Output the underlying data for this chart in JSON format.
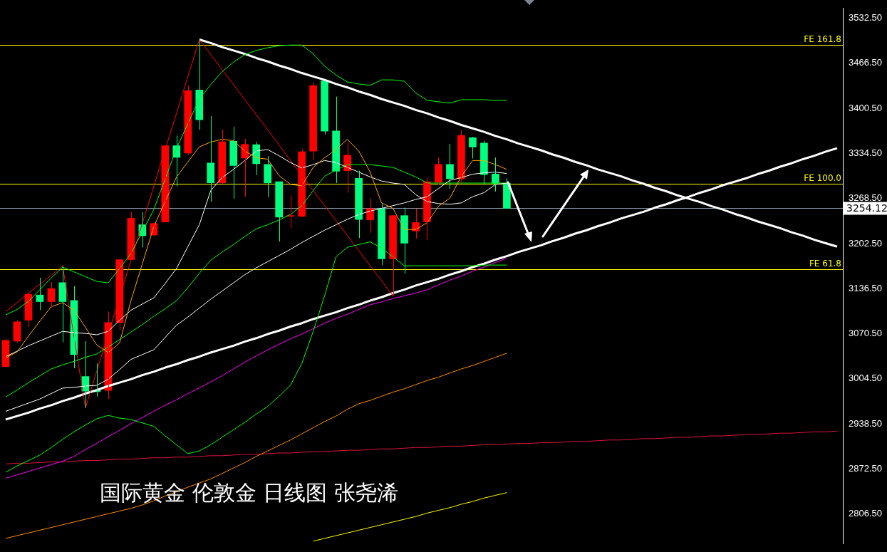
{
  "chart_data": {
    "type": "candlestick",
    "title": "国际黄金 伦敦金 日线图 张尧浠",
    "categories": [
      null,
      null,
      null,
      null,
      null,
      null,
      null,
      null,
      null,
      null,
      null,
      null,
      null,
      null,
      null,
      null,
      null,
      null,
      null,
      null,
      null,
      null,
      null,
      null,
      null,
      null,
      null,
      null,
      null,
      null,
      null,
      null,
      null,
      null,
      null,
      null,
      null,
      null,
      null,
      null,
      null,
      null,
      null,
      null,
      null,
      null,
      null,
      null,
      null,
      null,
      null,
      null,
      null,
      null,
      null,
      null,
      null,
      null,
      null,
      null,
      null,
      null,
      null,
      null,
      null,
      null,
      null,
      null,
      null,
      null,
      null,
      null,
      null,
      null
    ],
    "ohlc": [
      [
        3022.5,
        3063.5,
        3021.8,
        3060.8
      ],
      [
        3059.7,
        3090.4,
        3057.9,
        3087.9
      ],
      [
        3090.4,
        3130.8,
        3080.3,
        3128.3
      ],
      [
        3127.2,
        3152.5,
        3104.9,
        3117.5
      ],
      [
        3117.5,
        3146.3,
        3108.4,
        3136.6
      ],
      [
        3145.3,
        3169.8,
        3057.9,
        3117.5
      ],
      [
        3119.2,
        3140.3,
        3020.0,
        3039.9
      ],
      [
        3008.0,
        3059.7,
        2962.3,
        2986.4
      ],
      [
        2987.5,
        3027.1,
        2978.6,
        2985.7
      ],
      [
        2987.5,
        3103.0,
        2974.9,
        3086.8
      ],
      [
        3086.8,
        3179.0,
        3076.0,
        3178.9
      ],
      [
        3178.9,
        3248.5,
        3178.9,
        3239.5
      ],
      [
        3230.1,
        3248.5,
        3196.8,
        3213.8
      ],
      [
        3214.9,
        3232.9,
        3213.1,
        3231.9
      ],
      [
        3234.0,
        3346.0,
        3233.5,
        3345.6
      ],
      [
        3345.6,
        3360.4,
        3286.4,
        3328.6
      ],
      [
        3334.8,
        3433.3,
        3332.3,
        3426.1
      ],
      [
        3427.2,
        3501.2,
        3369.1,
        3383.5
      ],
      [
        3320.3,
        3388.9,
        3263.6,
        3291.4
      ],
      [
        3291.4,
        3369.4,
        3290.0,
        3351.4
      ],
      [
        3352.1,
        3373.7,
        3268.0,
        3316.7
      ],
      [
        3327.5,
        3355.7,
        3270.8,
        3347.7
      ],
      [
        3347.2,
        3351.4,
        3302.7,
        3319.2
      ],
      [
        3318.2,
        3330.4,
        3270.4,
        3291.2
      ],
      [
        3292.9,
        3292.9,
        3205.3,
        3241.1
      ],
      [
        3242.4,
        3272.8,
        3225.5,
        3243.1
      ],
      [
        3242.4,
        3340.5,
        3241.1,
        3336.7
      ],
      [
        3337.7,
        3438.2,
        3325.3,
        3433.7
      ],
      [
        3440.5,
        3440.5,
        3362.0,
        3367.0
      ],
      [
        3367.4,
        3417.6,
        3291.2,
        3308.4
      ],
      [
        3309.1,
        3350.6,
        3277.1,
        3331.9
      ],
      [
        3298.0,
        3309.1,
        3210.4,
        3237.7
      ],
      [
        3237.1,
        3268.7,
        3218.2,
        3253.6
      ],
      [
        3253.6,
        3260.9,
        3170.9,
        3180.1
      ],
      [
        3180.1,
        3243.4,
        3125.5,
        3243.4
      ],
      [
        3243.4,
        3255.3,
        3158.2,
        3203.0
      ],
      [
        3220.9,
        3253.6,
        3209.8,
        3233.2
      ],
      [
        3234.3,
        3299.7,
        3207.4,
        3292.9
      ],
      [
        3292.2,
        3328.3,
        3288.9,
        3318.2
      ],
      [
        3318.2,
        3348.5,
        3282.2,
        3297.3
      ],
      [
        3297.3,
        3368.8,
        3290.6,
        3360.7
      ],
      [
        3357.3,
        3358.6,
        3327.0,
        3343.8
      ],
      [
        3349.6,
        3352.9,
        3288.2,
        3303.4
      ],
      [
        3304.1,
        3328.3,
        3278.8,
        3290.6
      ],
      [
        3290.6,
        3298.0,
        3254.12,
        3254.12
      ],
      null,
      null,
      null,
      null,
      null,
      null,
      null,
      null,
      null,
      null,
      null,
      null,
      null,
      null,
      null,
      null,
      null,
      null,
      null,
      null,
      null,
      null,
      null,
      null,
      null,
      null,
      null,
      null,
      null
    ],
    "colors": [
      "#ff0000",
      "#ff0000",
      "#ff0000",
      "#00ff7f",
      "#ff0000",
      "#00ff7f",
      "#00ff7f",
      "#00ff7f",
      "#00ff7f",
      "#ff0000",
      "#ff0000",
      "#ff0000",
      "#00ff7f",
      "#ff0000",
      "#ff0000",
      "#00ff7f",
      "#ff0000",
      "#00ff7f",
      "#00ff7f",
      "#ff0000",
      "#00ff7f",
      "#ff0000",
      "#00ff7f",
      "#00ff7f",
      "#00ff7f",
      "#ff0000",
      "#ff0000",
      "#ff0000",
      "#00ff7f",
      "#00ff7f",
      "#ff0000",
      "#00ff7f",
      "#ff0000",
      "#00ff7f",
      "#ff0000",
      "#00ff7f",
      "#ff0000",
      "#ff0000",
      "#ff0000",
      "#00ff7f",
      "#ff0000",
      "#00ff7f",
      "#00ff7f",
      "#00ff7f",
      "#00ff7f",
      null,
      null,
      null,
      null,
      null,
      null,
      null,
      null,
      null,
      null,
      null,
      null,
      null,
      null,
      null,
      null,
      null,
      null,
      null,
      null,
      null,
      null,
      null,
      null,
      null,
      null,
      null,
      null,
      null
    ],
    "series": [
      {
        "type": "line",
        "color": "#ffa500",
        "values": [
          3035,
          3044,
          3067,
          3089,
          3110,
          3116,
          3105,
          3080,
          3054,
          3043,
          3057,
          3119,
          3173,
          3227,
          3264,
          3300,
          3322,
          3344,
          3351,
          3355,
          3353,
          3338,
          3328,
          3326,
          3302,
          3289,
          3287,
          3314,
          3328,
          3340,
          3355,
          3338,
          3307,
          3262,
          3254,
          3223,
          3223,
          3233,
          3257,
          3269,
          3301,
          3324,
          3324,
          3318,
          3311,
          null,
          null,
          null,
          null,
          null,
          null,
          null,
          null,
          null,
          null,
          null,
          null,
          null,
          null,
          null,
          null,
          null,
          null,
          null,
          null,
          null,
          null,
          null,
          null,
          null,
          null,
          null,
          null,
          null
        ]
      },
      {
        "type": "line",
        "color": "#ffffff",
        "values": [
          3037,
          3045,
          3053,
          3060,
          3067,
          3074,
          3072,
          3071,
          3069,
          3074,
          3090,
          3105,
          3114,
          3123,
          3144,
          3166,
          3198,
          3230,
          3280,
          3299,
          3311,
          3324,
          3338,
          3340,
          3331,
          3321,
          3313,
          3318,
          3324,
          3321,
          3314,
          3307,
          3300,
          3294,
          3291,
          3289,
          3274,
          3264,
          3261,
          3260,
          3262,
          3271,
          3277,
          3289,
          3291,
          null,
          null,
          null,
          null,
          null,
          null,
          null,
          null,
          null,
          null,
          null,
          null,
          null,
          null,
          null,
          null,
          null,
          null,
          null,
          null,
          null,
          null,
          null,
          null,
          null,
          null,
          null,
          null,
          null
        ]
      },
      {
        "type": "line",
        "color": "#ffffff",
        "values": [
          2957,
          2963,
          2969,
          2975,
          2983,
          2991,
          2992,
          2994,
          2995,
          3004,
          3018,
          3033,
          3040,
          3047,
          3065,
          3083,
          3095,
          3108,
          3121,
          3133,
          3145,
          3157,
          3167,
          3176,
          3185,
          3194,
          3204,
          3213,
          3222,
          3230,
          3238,
          3245,
          3250,
          3254,
          3258,
          3262,
          3267,
          3271,
          3283,
          3295,
          3299,
          3304,
          3306,
          3307,
          3305,
          null,
          null,
          null,
          null,
          null,
          null,
          null,
          null,
          null,
          null,
          null,
          null,
          null,
          null,
          null,
          null,
          null,
          null,
          null,
          null,
          null,
          null,
          null,
          null,
          null,
          null,
          null,
          null,
          null
        ]
      },
      {
        "type": "line",
        "color": "#00ff00",
        "values": [
          2978,
          2988,
          2999,
          3009,
          3019,
          3025,
          3030,
          3036,
          3041,
          3051,
          3062,
          3073,
          3084,
          3096,
          3107,
          3119,
          3138,
          3159,
          3178,
          3190,
          3201,
          3213,
          3224,
          3230,
          3237,
          3245,
          3258,
          3280,
          3301,
          3310,
          3318,
          3318,
          3318,
          3316,
          3314,
          3307,
          3300,
          3291,
          3291,
          3291,
          3291,
          3291,
          3291,
          3291,
          3291,
          null,
          null,
          null,
          null,
          null,
          null,
          null,
          null,
          null,
          null,
          null,
          null,
          null,
          null,
          null,
          null,
          null,
          null,
          null,
          null,
          null,
          null,
          null,
          null,
          null,
          null,
          null,
          null,
          null
        ]
      },
      {
        "type": "line",
        "color": "#00ff00",
        "values": [
          3098,
          3106,
          3118,
          3135,
          3152,
          3168,
          3161,
          3154,
          3147,
          3145,
          3166,
          3188,
          3220,
          3252,
          3297,
          3342,
          3378,
          3414,
          3435,
          3454,
          3468,
          3479,
          3485,
          3489,
          3492,
          3493,
          3493,
          3480,
          3462,
          3449,
          3439,
          3436,
          3434,
          3442,
          3442,
          3440,
          3423,
          3412,
          3410,
          3408,
          3413,
          3413,
          3413,
          3412,
          3412,
          null,
          null,
          null,
          null,
          null,
          null,
          null,
          null,
          null,
          null,
          null,
          null,
          null,
          null,
          null,
          null,
          null,
          null,
          null,
          null,
          null,
          null,
          null,
          null,
          null,
          null,
          null,
          null,
          null
        ]
      },
      {
        "type": "line",
        "color": "#00ff00",
        "values": [
          2868,
          2877,
          2885,
          2893,
          2904,
          2916,
          2927,
          2937,
          2946,
          2951,
          2947,
          2945,
          2940,
          2935,
          2921,
          2908,
          2895,
          2899,
          2908,
          2919,
          2930,
          2941,
          2953,
          2964,
          2979,
          2995,
          3027,
          3074,
          3126,
          3183,
          3197,
          3201,
          3205,
          3196,
          3183,
          3170,
          3170,
          3170,
          3170,
          3170,
          3170,
          3170,
          3171,
          3171,
          3171,
          null,
          null,
          null,
          null,
          null,
          null,
          null,
          null,
          null,
          null,
          null,
          null,
          null,
          null,
          null,
          null,
          null,
          null,
          null,
          null,
          null,
          null,
          null,
          null,
          null,
          null,
          null,
          null,
          null
        ]
      },
      {
        "type": "line",
        "color": "#ff00ff",
        "values": [
          2859,
          2864,
          2869,
          2874,
          2879,
          2884,
          2891,
          2901,
          2910,
          2920,
          2929,
          2939,
          2948,
          2957,
          2966,
          2974,
          2983,
          2991,
          3000,
          3009,
          3019,
          3029,
          3038,
          3047,
          3055,
          3063,
          3070,
          3078,
          3086,
          3093,
          3099,
          3106,
          3113,
          3117,
          3122,
          3126,
          3130,
          3135,
          3142,
          3149,
          3155,
          3162,
          3168,
          3175,
          3181,
          null,
          null,
          null,
          null,
          null,
          null,
          null,
          null,
          null,
          null,
          null,
          null,
          null,
          null,
          null,
          null,
          null,
          null,
          null,
          null,
          null,
          null,
          null,
          null,
          null,
          null,
          null,
          null,
          null
        ]
      },
      {
        "type": "line",
        "color": "#ff8c00",
        "values": [
          2771,
          2775,
          2779,
          2783,
          2787,
          2791,
          2795,
          2799,
          2803,
          2807,
          2811,
          2815,
          2820,
          2826,
          2833,
          2839,
          2846,
          2852,
          2858,
          2866,
          2874,
          2882,
          2891,
          2899,
          2907,
          2915,
          2924,
          2933,
          2942,
          2950,
          2960,
          2968,
          2973,
          2979,
          2985,
          2990,
          2996,
          3002,
          3007,
          3013,
          3019,
          3024,
          3030,
          3036,
          3042,
          null,
          null,
          null,
          null,
          null,
          null,
          null,
          null,
          null,
          null,
          null,
          null,
          null,
          null,
          null,
          null,
          null,
          null,
          null,
          null,
          null,
          null,
          null,
          null,
          null,
          null,
          null,
          null,
          null
        ]
      },
      {
        "type": "line",
        "color": "#dc143c",
        "values": [
          2880,
          2881,
          2881,
          2882,
          2883,
          2883,
          2884,
          2885,
          2885,
          2886,
          2887,
          2887,
          2888,
          2889,
          2889,
          2890,
          2890,
          2891,
          2892,
          2892,
          2893,
          2894,
          2894,
          2895,
          2896,
          2896,
          2897,
          2898,
          2898,
          2899,
          2900,
          2900,
          2901,
          2902,
          2902,
          2903,
          2904,
          2904,
          2905,
          2906,
          2906,
          2907,
          2908,
          2908,
          2909,
          2910,
          2910,
          2911,
          2911,
          2912,
          2913,
          2913,
          2914,
          2915,
          2915,
          2916,
          2917,
          2917,
          2918,
          2919,
          2919,
          2920,
          2921,
          2921,
          2922,
          2923,
          2923,
          2924,
          2925,
          2925,
          2926,
          2927,
          2927,
          2928
        ]
      },
      {
        "type": "line",
        "color": "#ffff00",
        "values": [
          null,
          null,
          null,
          null,
          null,
          null,
          null,
          null,
          null,
          null,
          null,
          null,
          null,
          null,
          null,
          null,
          null,
          null,
          null,
          null,
          null,
          null,
          null,
          null,
          null,
          null,
          null,
          2767,
          2771,
          2775,
          2779,
          2783,
          2787,
          2791,
          2795,
          2799,
          2803,
          2808,
          2812,
          2816,
          2821,
          2825,
          2830,
          2834,
          2838,
          null,
          null,
          null,
          null,
          null,
          null,
          null,
          null,
          null,
          null,
          null,
          null,
          null,
          null,
          null,
          null,
          null,
          null,
          null,
          null,
          null,
          null,
          null,
          null,
          null,
          null,
          null,
          null,
          null
        ]
      },
      {
        "type": "line",
        "color": "#ff0000",
        "values": [
          3103,
          3116,
          3130,
          3143,
          3156,
          3170,
          3066,
          2962,
          3016,
          3070,
          3124,
          3178,
          3232,
          3286,
          3340,
          3393,
          3447,
          3501,
          3479,
          3457,
          3435,
          3413,
          3391,
          3369,
          3347,
          3324,
          3302,
          3280,
          3258,
          3236,
          3214,
          3192,
          3170,
          3148,
          3126,
          null,
          null,
          null,
          null,
          null,
          null,
          null,
          null,
          null,
          null,
          null,
          null,
          null,
          null,
          null,
          null,
          null,
          null,
          null,
          null,
          null,
          null,
          null,
          null,
          null,
          null,
          null,
          null,
          null,
          null,
          null,
          null,
          null,
          null,
          null,
          null,
          null,
          null,
          null
        ]
      },
      {
        "type": "line",
        "color": "#ffffff",
        "values": [
          null,
          null,
          null,
          null,
          null,
          null,
          null,
          null,
          null,
          null,
          null,
          null,
          null,
          null,
          null,
          null,
          null,
          3501,
          3496,
          3490,
          3485,
          3480,
          3474,
          3469,
          3463,
          3458,
          3452,
          3447,
          3442,
          3436,
          3431,
          3425,
          3420,
          3414,
          3409,
          3404,
          3398,
          3393,
          3387,
          3382,
          3376,
          3371,
          3366,
          3360,
          3355,
          3349,
          3344,
          3339,
          3333,
          3328,
          3322,
          3317,
          3311,
          3306,
          3301,
          3295,
          3290,
          3284,
          3279,
          3273,
          3268,
          3263,
          3257,
          3252,
          3246,
          3241,
          3235,
          3230,
          3225,
          3219,
          3214,
          3208,
          3203,
          3198
        ]
      },
      {
        "type": "line",
        "color": "#ffffff",
        "values": [
          2945,
          2950,
          2955,
          2961,
          2966,
          2972,
          2977,
          2983,
          2988,
          2994,
          2999,
          3004,
          3010,
          3015,
          3021,
          3026,
          3032,
          3037,
          3043,
          3048,
          3053,
          3059,
          3064,
          3070,
          3075,
          3081,
          3086,
          3092,
          3097,
          3102,
          3108,
          3113,
          3119,
          3124,
          3130,
          3135,
          3141,
          3146,
          3151,
          3157,
          3162,
          3168,
          3173,
          3179,
          3184,
          3190,
          3195,
          3200,
          3206,
          3211,
          3217,
          3222,
          3228,
          3233,
          3239,
          3244,
          3249,
          3255,
          3260,
          3266,
          3271,
          3277,
          3282,
          3288,
          3293,
          3298,
          3304,
          3309,
          3315,
          3320,
          3326,
          3331,
          3337,
          3342
        ]
      }
    ],
    "ylim": [
      2763.4,
      3546.6
    ],
    "yticks": [
      {
        "value": 2806.5,
        "label": "2806.50"
      },
      {
        "value": 2872.5,
        "label": "2872.50"
      },
      {
        "value": 2938.5,
        "label": "2938.50"
      },
      {
        "value": 3004.5,
        "label": "3004.50"
      },
      {
        "value": 3070.5,
        "label": "3070.50"
      },
      {
        "value": 3136.5,
        "label": "3136.50"
      },
      {
        "value": 3202.5,
        "label": "3202.50"
      },
      {
        "value": 3268.5,
        "label": "3268.50"
      },
      {
        "value": 3334.5,
        "label": "3334.50"
      },
      {
        "value": 3400.5,
        "label": "3400.50"
      },
      {
        "value": 3466.5,
        "label": "3466.50"
      },
      {
        "value": 3532.5,
        "label": "3532.50"
      }
    ],
    "tick_labels": "y",
    "grid": false,
    "legend": false,
    "ref_lines": [
      {
        "axis": "y",
        "value": 3493.1,
        "label": "FE 161.8",
        "color": "#ffff00"
      },
      {
        "axis": "y",
        "value": 3289.9,
        "label": "FE 100.0",
        "color": "#ffff00"
      },
      {
        "axis": "y",
        "value": 3164.6,
        "label": "FE 61.8",
        "color": "#ffff00"
      },
      {
        "axis": "y",
        "value": 3254.12,
        "label": "3254.12",
        "color": "#8a9aaa"
      }
    ]
  }
}
